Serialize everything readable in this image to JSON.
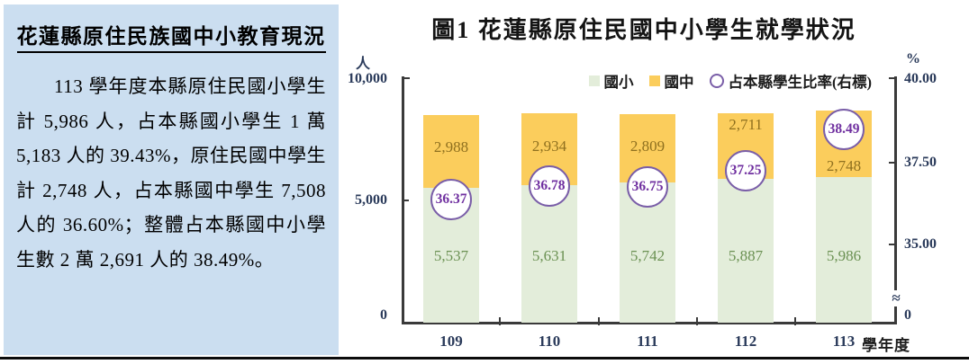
{
  "panel": {
    "title": "花蓮縣原住民族國中小教育現況",
    "body": "113 學年度本縣原住民國小學生計 5,986 人，占本縣國小學生 1 萬 5,183 人的 39.43%，原住民國中學生計 2,748 人，占本縣國中學生 7,508 人的 36.60%；整體占本縣國中小學生數 2 萬 2,691 人的 38.49%。"
  },
  "chart": {
    "title": "圖1 花蓮縣原住民國中小學生就學狀況",
    "legend": {
      "primary": "國小",
      "secondary": "國中",
      "rate": "占本縣學生比率(右標)"
    },
    "left_axis": {
      "unit": "人",
      "ticks": [
        "10,000",
        "5,000",
        "0"
      ]
    },
    "right_axis": {
      "unit": "%",
      "ticks": [
        "40.00",
        "37.50",
        "35.00"
      ],
      "break_mark": "≈",
      "bottom": "0"
    },
    "x_axis_suffix": "學年度"
  },
  "chart_data": {
    "type": "bar",
    "subtype": "stacked-columns-with-rate-circles",
    "title": "圖1 花蓮縣原住民國中小學生就學狀況",
    "categories": [
      "109",
      "110",
      "111",
      "112",
      "113"
    ],
    "series": [
      {
        "name": "國小",
        "axis": "left",
        "values": [
          5537,
          5631,
          5742,
          5887,
          5986
        ],
        "labels": [
          "5,537",
          "5,631",
          "5,742",
          "5,887",
          "5,986"
        ],
        "color": "#E3EDDA",
        "label_color": "#6B9153"
      },
      {
        "name": "國中",
        "axis": "left",
        "values": [
          2988,
          2934,
          2809,
          2711,
          2748
        ],
        "labels": [
          "2,988",
          "2,934",
          "2,809",
          "2,711",
          "2,748"
        ],
        "color": "#FBCD5C",
        "label_color": "#8F701F"
      },
      {
        "name": "占本縣學生比率(右標)",
        "axis": "right",
        "marker": "circle",
        "values": [
          36.37,
          36.78,
          36.75,
          37.25,
          38.49
        ],
        "labels": [
          "36.37",
          "36.78",
          "36.75",
          "37.25",
          "38.49"
        ],
        "stroke_color": "#7A5EA8",
        "text_color": "#7030A0"
      }
    ],
    "left_ylabel": "人",
    "left_ylim": [
      0,
      10000
    ],
    "left_ticks": [
      0,
      5000,
      10000
    ],
    "right_ylabel": "%",
    "right_ticks": [
      35.0,
      37.5,
      40.0
    ],
    "right_axis_broken_above_zero": true,
    "xlabel": "學年度",
    "legend_position": "top-right",
    "grid": false
  }
}
